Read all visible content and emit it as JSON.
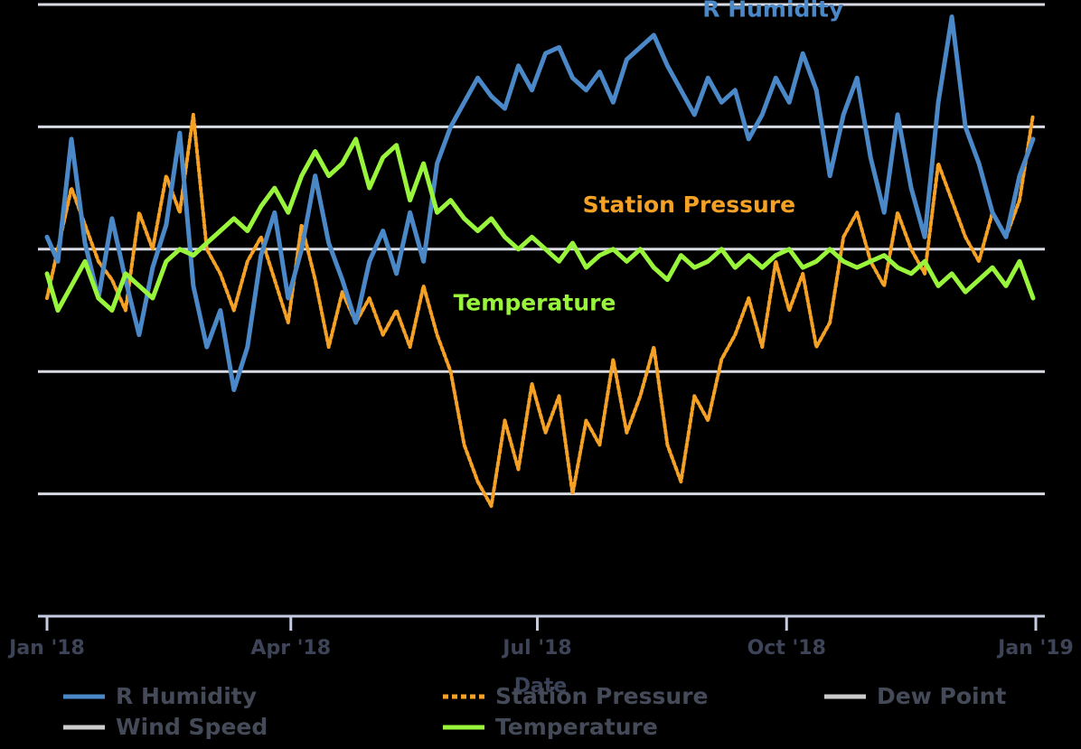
{
  "chart_data": {
    "type": "line",
    "title": "",
    "xlabel": "Date",
    "ylabel": "",
    "x_range": [
      "2018-01-01",
      "2019-01-01"
    ],
    "y_range": [
      0,
      100
    ],
    "x_ticks": [
      {
        "date": "2018-01-01",
        "label": "Jan '18"
      },
      {
        "date": "2018-04-01",
        "label": "Apr '18"
      },
      {
        "date": "2018-07-01",
        "label": "Jul '18"
      },
      {
        "date": "2018-10-01",
        "label": "Oct '18"
      },
      {
        "date": "2019-01-01",
        "label": "Jan '19"
      }
    ],
    "y_gridlines": [
      20,
      40,
      60,
      80,
      100
    ],
    "grid": true,
    "legend_position": "bottom",
    "series": [
      {
        "name": "R Humidity",
        "color": "#4a88c8",
        "dash": "solid",
        "points": [
          [
            "2018-01-01",
            62
          ],
          [
            "2018-01-05",
            58
          ],
          [
            "2018-01-10",
            78
          ],
          [
            "2018-01-15",
            61
          ],
          [
            "2018-01-20",
            52
          ],
          [
            "2018-01-25",
            65
          ],
          [
            "2018-01-30",
            55
          ],
          [
            "2018-02-04",
            46
          ],
          [
            "2018-02-09",
            57
          ],
          [
            "2018-02-14",
            64
          ],
          [
            "2018-02-19",
            79
          ],
          [
            "2018-02-24",
            54
          ],
          [
            "2018-03-01",
            44
          ],
          [
            "2018-03-06",
            50
          ],
          [
            "2018-03-11",
            37
          ],
          [
            "2018-03-16",
            44
          ],
          [
            "2018-03-21",
            59
          ],
          [
            "2018-03-26",
            66
          ],
          [
            "2018-03-31",
            52
          ],
          [
            "2018-04-05",
            60
          ],
          [
            "2018-04-10",
            72
          ],
          [
            "2018-04-15",
            61
          ],
          [
            "2018-04-20",
            55
          ],
          [
            "2018-04-25",
            48
          ],
          [
            "2018-04-30",
            58
          ],
          [
            "2018-05-05",
            63
          ],
          [
            "2018-05-10",
            56
          ],
          [
            "2018-05-15",
            66
          ],
          [
            "2018-05-20",
            58
          ],
          [
            "2018-05-25",
            74
          ],
          [
            "2018-05-30",
            80
          ],
          [
            "2018-06-04",
            84
          ],
          [
            "2018-06-09",
            88
          ],
          [
            "2018-06-14",
            85
          ],
          [
            "2018-06-19",
            83
          ],
          [
            "2018-06-24",
            90
          ],
          [
            "2018-06-29",
            86
          ],
          [
            "2018-07-04",
            92
          ],
          [
            "2018-07-09",
            93
          ],
          [
            "2018-07-14",
            88
          ],
          [
            "2018-07-19",
            86
          ],
          [
            "2018-07-24",
            89
          ],
          [
            "2018-07-29",
            84
          ],
          [
            "2018-08-03",
            91
          ],
          [
            "2018-08-08",
            93
          ],
          [
            "2018-08-13",
            95
          ],
          [
            "2018-08-18",
            90
          ],
          [
            "2018-08-23",
            86
          ],
          [
            "2018-08-28",
            82
          ],
          [
            "2018-09-02",
            88
          ],
          [
            "2018-09-07",
            84
          ],
          [
            "2018-09-12",
            86
          ],
          [
            "2018-09-17",
            78
          ],
          [
            "2018-09-22",
            82
          ],
          [
            "2018-09-27",
            88
          ],
          [
            "2018-10-02",
            84
          ],
          [
            "2018-10-07",
            92
          ],
          [
            "2018-10-12",
            86
          ],
          [
            "2018-10-17",
            72
          ],
          [
            "2018-10-22",
            82
          ],
          [
            "2018-10-27",
            88
          ],
          [
            "2018-11-01",
            75
          ],
          [
            "2018-11-06",
            66
          ],
          [
            "2018-11-11",
            82
          ],
          [
            "2018-11-16",
            70
          ],
          [
            "2018-11-21",
            62
          ],
          [
            "2018-11-26",
            84
          ],
          [
            "2018-12-01",
            98
          ],
          [
            "2018-12-06",
            80
          ],
          [
            "2018-12-11",
            74
          ],
          [
            "2018-12-16",
            66
          ],
          [
            "2018-12-21",
            62
          ],
          [
            "2018-12-26",
            72
          ],
          [
            "2018-12-31",
            78
          ]
        ]
      },
      {
        "name": "Station Pressure",
        "color": "#f5a125",
        "dash": "dotted",
        "points": [
          [
            "2018-01-01",
            52
          ],
          [
            "2018-01-05",
            60
          ],
          [
            "2018-01-10",
            70
          ],
          [
            "2018-01-15",
            64
          ],
          [
            "2018-01-20",
            58
          ],
          [
            "2018-01-25",
            55
          ],
          [
            "2018-01-30",
            50
          ],
          [
            "2018-02-04",
            66
          ],
          [
            "2018-02-09",
            60
          ],
          [
            "2018-02-14",
            72
          ],
          [
            "2018-02-19",
            66
          ],
          [
            "2018-02-24",
            82
          ],
          [
            "2018-03-01",
            60
          ],
          [
            "2018-03-06",
            56
          ],
          [
            "2018-03-11",
            50
          ],
          [
            "2018-03-16",
            58
          ],
          [
            "2018-03-21",
            62
          ],
          [
            "2018-03-26",
            55
          ],
          [
            "2018-03-31",
            48
          ],
          [
            "2018-04-05",
            64
          ],
          [
            "2018-04-10",
            55
          ],
          [
            "2018-04-15",
            44
          ],
          [
            "2018-04-20",
            53
          ],
          [
            "2018-04-25",
            48
          ],
          [
            "2018-04-30",
            52
          ],
          [
            "2018-05-05",
            46
          ],
          [
            "2018-05-10",
            50
          ],
          [
            "2018-05-15",
            44
          ],
          [
            "2018-05-20",
            54
          ],
          [
            "2018-05-25",
            46
          ],
          [
            "2018-05-30",
            40
          ],
          [
            "2018-06-04",
            28
          ],
          [
            "2018-06-09",
            22
          ],
          [
            "2018-06-14",
            18
          ],
          [
            "2018-06-19",
            32
          ],
          [
            "2018-06-24",
            24
          ],
          [
            "2018-06-29",
            38
          ],
          [
            "2018-07-04",
            30
          ],
          [
            "2018-07-09",
            36
          ],
          [
            "2018-07-14",
            20
          ],
          [
            "2018-07-19",
            32
          ],
          [
            "2018-07-24",
            28
          ],
          [
            "2018-07-29",
            42
          ],
          [
            "2018-08-03",
            30
          ],
          [
            "2018-08-08",
            36
          ],
          [
            "2018-08-13",
            44
          ],
          [
            "2018-08-18",
            28
          ],
          [
            "2018-08-23",
            22
          ],
          [
            "2018-08-28",
            36
          ],
          [
            "2018-09-02",
            32
          ],
          [
            "2018-09-07",
            42
          ],
          [
            "2018-09-12",
            46
          ],
          [
            "2018-09-17",
            52
          ],
          [
            "2018-09-22",
            44
          ],
          [
            "2018-09-27",
            58
          ],
          [
            "2018-10-02",
            50
          ],
          [
            "2018-10-07",
            56
          ],
          [
            "2018-10-12",
            44
          ],
          [
            "2018-10-17",
            48
          ],
          [
            "2018-10-22",
            62
          ],
          [
            "2018-10-27",
            66
          ],
          [
            "2018-11-01",
            58
          ],
          [
            "2018-11-06",
            54
          ],
          [
            "2018-11-11",
            66
          ],
          [
            "2018-11-16",
            60
          ],
          [
            "2018-11-21",
            56
          ],
          [
            "2018-11-26",
            74
          ],
          [
            "2018-12-01",
            68
          ],
          [
            "2018-12-06",
            62
          ],
          [
            "2018-12-11",
            58
          ],
          [
            "2018-12-16",
            66
          ],
          [
            "2018-12-21",
            62
          ],
          [
            "2018-12-26",
            68
          ],
          [
            "2018-12-31",
            82
          ]
        ]
      },
      {
        "name": "Temperature",
        "color": "#99f53b",
        "dash": "solid",
        "points": [
          [
            "2018-01-01",
            56
          ],
          [
            "2018-01-05",
            50
          ],
          [
            "2018-01-10",
            54
          ],
          [
            "2018-01-15",
            58
          ],
          [
            "2018-01-20",
            52
          ],
          [
            "2018-01-25",
            50
          ],
          [
            "2018-01-30",
            56
          ],
          [
            "2018-02-04",
            54
          ],
          [
            "2018-02-09",
            52
          ],
          [
            "2018-02-14",
            58
          ],
          [
            "2018-02-19",
            60
          ],
          [
            "2018-02-24",
            59
          ],
          [
            "2018-03-01",
            61
          ],
          [
            "2018-03-06",
            63
          ],
          [
            "2018-03-11",
            65
          ],
          [
            "2018-03-16",
            63
          ],
          [
            "2018-03-21",
            67
          ],
          [
            "2018-03-26",
            70
          ],
          [
            "2018-03-31",
            66
          ],
          [
            "2018-04-05",
            72
          ],
          [
            "2018-04-10",
            76
          ],
          [
            "2018-04-15",
            72
          ],
          [
            "2018-04-20",
            74
          ],
          [
            "2018-04-25",
            78
          ],
          [
            "2018-04-30",
            70
          ],
          [
            "2018-05-05",
            75
          ],
          [
            "2018-05-10",
            77
          ],
          [
            "2018-05-15",
            68
          ],
          [
            "2018-05-20",
            74
          ],
          [
            "2018-05-25",
            66
          ],
          [
            "2018-05-30",
            68
          ],
          [
            "2018-06-04",
            65
          ],
          [
            "2018-06-09",
            63
          ],
          [
            "2018-06-14",
            65
          ],
          [
            "2018-06-19",
            62
          ],
          [
            "2018-06-24",
            60
          ],
          [
            "2018-06-29",
            62
          ],
          [
            "2018-07-04",
            60
          ],
          [
            "2018-07-09",
            58
          ],
          [
            "2018-07-14",
            61
          ],
          [
            "2018-07-19",
            57
          ],
          [
            "2018-07-24",
            59
          ],
          [
            "2018-07-29",
            60
          ],
          [
            "2018-08-03",
            58
          ],
          [
            "2018-08-08",
            60
          ],
          [
            "2018-08-13",
            57
          ],
          [
            "2018-08-18",
            55
          ],
          [
            "2018-08-23",
            59
          ],
          [
            "2018-08-28",
            57
          ],
          [
            "2018-09-02",
            58
          ],
          [
            "2018-09-07",
            60
          ],
          [
            "2018-09-12",
            57
          ],
          [
            "2018-09-17",
            59
          ],
          [
            "2018-09-22",
            57
          ],
          [
            "2018-09-27",
            59
          ],
          [
            "2018-10-02",
            60
          ],
          [
            "2018-10-07",
            57
          ],
          [
            "2018-10-12",
            58
          ],
          [
            "2018-10-17",
            60
          ],
          [
            "2018-10-22",
            58
          ],
          [
            "2018-10-27",
            57
          ],
          [
            "2018-11-01",
            58
          ],
          [
            "2018-11-06",
            59
          ],
          [
            "2018-11-11",
            57
          ],
          [
            "2018-11-16",
            56
          ],
          [
            "2018-11-21",
            58
          ],
          [
            "2018-11-26",
            54
          ],
          [
            "2018-12-01",
            56
          ],
          [
            "2018-12-06",
            53
          ],
          [
            "2018-12-11",
            55
          ],
          [
            "2018-12-16",
            57
          ],
          [
            "2018-12-21",
            54
          ],
          [
            "2018-12-26",
            58
          ],
          [
            "2018-12-31",
            52
          ]
        ]
      },
      {
        "name": "Dew Point",
        "color": "#cccccc",
        "dash": "solid",
        "points": []
      },
      {
        "name": "Wind Speed",
        "color": "#cccccc",
        "dash": "solid",
        "points": []
      }
    ],
    "annotations": [
      {
        "text": "R Humidity",
        "date": "2018-09-26",
        "y": 98,
        "color": "#4a88c8"
      },
      {
        "text": "Station Pressure",
        "date": "2018-08-26",
        "y": 66,
        "color": "#f5a125"
      },
      {
        "text": "Temperature",
        "date": "2018-06-30",
        "y": 50,
        "color": "#99f53b"
      }
    ],
    "legend": [
      {
        "name": "R Humidity",
        "color": "#4a88c8",
        "dash": "solid",
        "row": 0
      },
      {
        "name": "Station Pressure",
        "color": "#f5a125",
        "dash": "dotted",
        "row": 0
      },
      {
        "name": "Dew Point",
        "color": "#cccccc",
        "dash": "solid",
        "row": 0
      },
      {
        "name": "Wind Speed",
        "color": "#cccccc",
        "dash": "solid",
        "row": 1
      },
      {
        "name": "Temperature",
        "color": "#99f53b",
        "dash": "solid",
        "row": 1
      }
    ]
  }
}
